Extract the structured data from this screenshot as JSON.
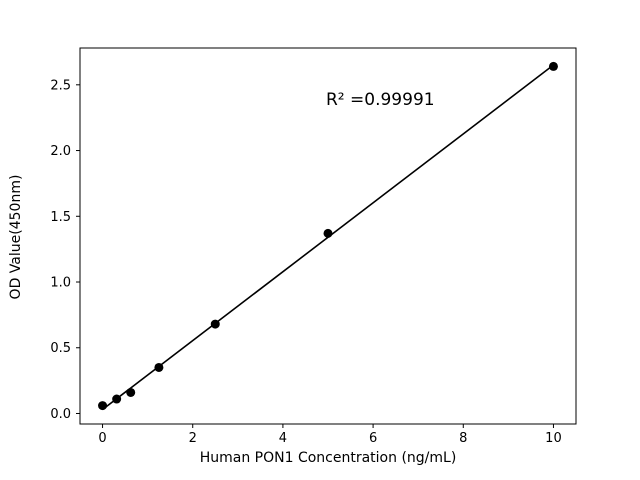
{
  "figure": {
    "background": "#ffffff"
  },
  "chart_data": {
    "type": "scatter",
    "title": "",
    "xlabel": "Human PON1 Concentration (ng/mL)",
    "ylabel": "OD Value(450nm)",
    "annotation": "R² =0.99991",
    "x": [
      0,
      0.313,
      0.625,
      1.25,
      2.5,
      5,
      10
    ],
    "y": [
      0.06,
      0.11,
      0.16,
      0.35,
      0.68,
      1.37,
      2.64
    ],
    "fit_line": {
      "type": "linear",
      "r_squared": 0.99991
    },
    "x_ticks": [
      0,
      2,
      4,
      6,
      8,
      10
    ],
    "y_ticks": [
      0.0,
      0.5,
      1.0,
      1.5,
      2.0,
      2.5
    ],
    "xlim": [
      -0.5,
      10.5
    ],
    "ylim": [
      -0.08,
      2.78
    ],
    "marker_color": "#000000",
    "line_color": "#000000",
    "axis_color": "#000000",
    "grid": false,
    "legend": null
  }
}
